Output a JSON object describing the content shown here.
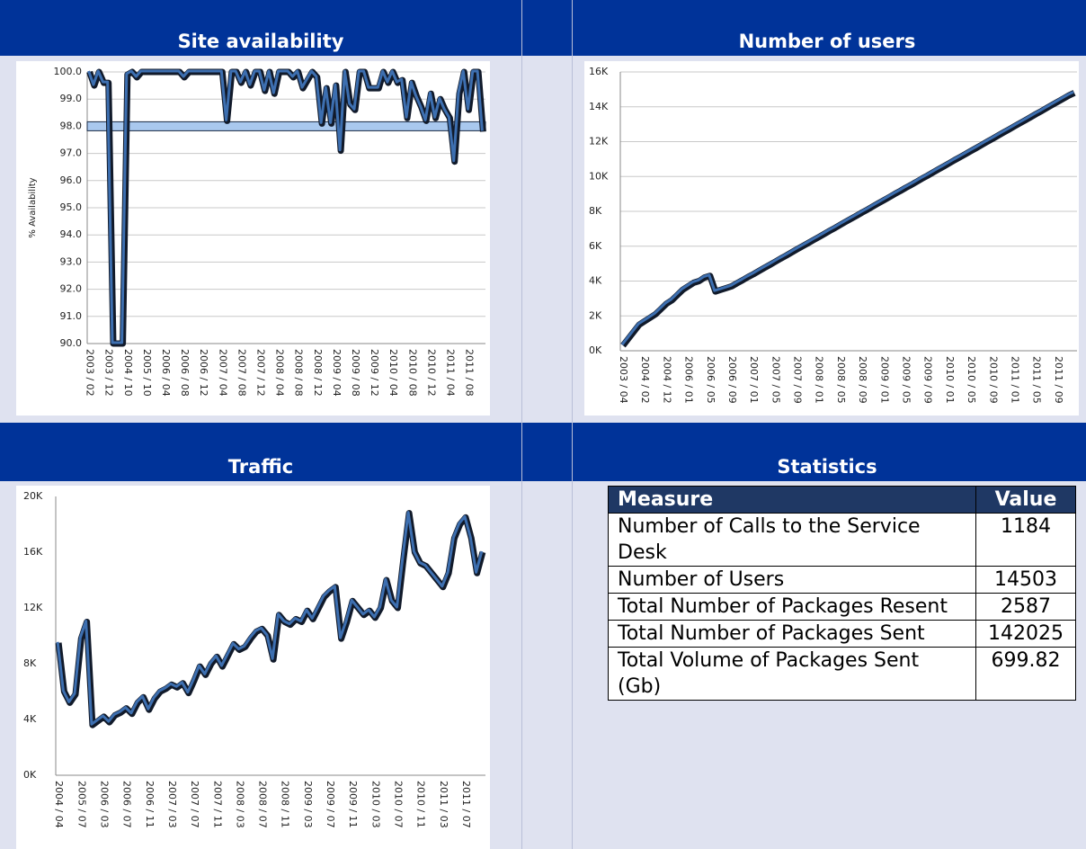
{
  "chart_data": [
    {
      "type": "line",
      "title": "Site availability",
      "ylabel": "% Availability",
      "color": "#3d6fb0",
      "target_color": "#a9c8ee",
      "grid": true,
      "categories": [
        "2003 / 02",
        null,
        null,
        null,
        "2003 / 12",
        null,
        null,
        null,
        "2004 / 10",
        null,
        null,
        null,
        "2005 / 10",
        null,
        null,
        null,
        "2006 / 04",
        null,
        null,
        null,
        "2006 / 08",
        null,
        null,
        null,
        "2006 / 12",
        null,
        null,
        null,
        "2007 / 04",
        null,
        null,
        null,
        "2007 / 08",
        null,
        null,
        null,
        "2007 / 12",
        null,
        null,
        null,
        "2008 / 04",
        null,
        null,
        null,
        "2008 / 08",
        null,
        null,
        null,
        "2008 / 12",
        null,
        null,
        null,
        "2009 / 04",
        null,
        null,
        null,
        "2009 / 08",
        null,
        null,
        null,
        "2009 / 12",
        null,
        null,
        null,
        "2010 / 04",
        null,
        null,
        null,
        "2010 / 08",
        null,
        null,
        null,
        "2010 / 12",
        null,
        null,
        null,
        "2011 / 04",
        null,
        null,
        null,
        "2011 / 08",
        null,
        null,
        null
      ],
      "values": [
        100,
        99.5,
        100,
        99.6,
        99.6,
        90,
        90,
        90,
        99.9,
        100,
        99.8,
        100,
        100,
        100,
        100,
        100,
        100,
        100,
        100,
        100,
        99.8,
        100,
        100,
        100,
        100,
        100,
        100,
        100,
        100,
        98.2,
        100,
        100,
        99.6,
        100,
        99.5,
        100,
        100,
        99.3,
        100,
        99.2,
        100,
        100,
        100,
        99.8,
        100,
        99.4,
        99.7,
        100,
        99.8,
        98.1,
        99.4,
        98.1,
        99.5,
        97.1,
        100,
        98.8,
        98.6,
        100,
        100,
        99.4,
        99.4,
        99.4,
        100,
        99.6,
        100,
        99.6,
        99.7,
        98.3,
        99.6,
        99.1,
        98.7,
        98.2,
        99.2,
        98.3,
        99,
        98.6,
        98.3,
        96.7,
        99.2,
        100,
        98.6,
        100,
        100,
        97.8
      ],
      "target": 98,
      "ylim": [
        90,
        100
      ],
      "yticks": [
        {
          "value": 90,
          "label": "90.0"
        },
        {
          "value": 91,
          "label": "91.0"
        },
        {
          "value": 92,
          "label": "92.0"
        },
        {
          "value": 93,
          "label": "93.0"
        },
        {
          "value": 94,
          "label": "94.0"
        },
        {
          "value": 95,
          "label": "95.0"
        },
        {
          "value": 96,
          "label": "96.0"
        },
        {
          "value": 97,
          "label": "97.0"
        },
        {
          "value": 98,
          "label": "98.0"
        },
        {
          "value": 99,
          "label": "99.0"
        },
        {
          "value": 100,
          "label": "100.0"
        }
      ]
    },
    {
      "type": "line",
      "title": "Number of users",
      "color": "#3d6fb0",
      "grid": true,
      "categories": [
        "2003 / 04",
        null,
        null,
        null,
        "2004 / 02",
        null,
        null,
        null,
        "2004 / 12",
        null,
        null,
        null,
        "2006 / 01",
        null,
        null,
        null,
        "2006 / 05",
        null,
        null,
        null,
        "2006 / 09",
        null,
        null,
        null,
        "2007 / 01",
        null,
        null,
        null,
        "2007 / 05",
        null,
        null,
        null,
        "2007 / 09",
        null,
        null,
        null,
        "2008 / 01",
        null,
        null,
        null,
        "2008 / 05",
        null,
        null,
        null,
        "2008 / 09",
        null,
        null,
        null,
        "2009 / 01",
        null,
        null,
        null,
        "2009 / 05",
        null,
        null,
        null,
        "2009 / 09",
        null,
        null,
        null,
        "2010 / 01",
        null,
        null,
        null,
        "2010 / 05",
        null,
        null,
        null,
        "2010 / 09",
        null,
        null,
        null,
        "2011 / 01",
        null,
        null,
        null,
        "2011 / 05",
        null,
        null,
        null,
        "2011 / 09",
        null,
        null,
        null
      ],
      "values": [
        300,
        700,
        1100,
        1500,
        1700,
        1900,
        2100,
        2400,
        2700,
        2900,
        3200,
        3500,
        3700,
        3900,
        4000,
        4200,
        4300,
        3400,
        3500,
        3600,
        3700,
        3880,
        4050,
        4230,
        4400,
        4580,
        4760,
        4930,
        5110,
        5290,
        5460,
        5640,
        5820,
        6000,
        6170,
        6350,
        6520,
        6700,
        6880,
        7050,
        7230,
        7410,
        7580,
        7760,
        7940,
        8110,
        8290,
        8470,
        8640,
        8820,
        9000,
        9170,
        9350,
        9520,
        9700,
        9880,
        10050,
        10230,
        10410,
        10580,
        10760,
        10940,
        11110,
        11290,
        11470,
        11640,
        11820,
        12000,
        12170,
        12350,
        12530,
        12700,
        12880,
        13060,
        13230,
        13410,
        13590,
        13760,
        13940,
        14120,
        14290,
        14470,
        14650,
        14800
      ],
      "ylim": [
        0,
        16000
      ],
      "yticks": [
        {
          "value": 0,
          "label": "0K"
        },
        {
          "value": 2000,
          "label": "2K"
        },
        {
          "value": 4000,
          "label": "4K"
        },
        {
          "value": 6000,
          "label": "6K"
        },
        {
          "value": 8000,
          "label": "8K"
        },
        {
          "value": 10000,
          "label": "10K"
        },
        {
          "value": 12000,
          "label": "12K"
        },
        {
          "value": 14000,
          "label": "14K"
        },
        {
          "value": 16000,
          "label": "16K"
        }
      ]
    },
    {
      "type": "line",
      "title": "Traffic",
      "color": "#3d6fb0",
      "grid": false,
      "categories": [
        "2004 / 04",
        null,
        null,
        null,
        "2005 / 07",
        null,
        null,
        null,
        "2006 / 03",
        null,
        null,
        null,
        "2006 / 07",
        null,
        null,
        null,
        "2006 / 11",
        null,
        null,
        null,
        "2007 / 03",
        null,
        null,
        null,
        "2007 / 07",
        null,
        null,
        null,
        "2007 / 11",
        null,
        null,
        null,
        "2008 / 03",
        null,
        null,
        null,
        "2008 / 07",
        null,
        null,
        null,
        "2008 / 11",
        null,
        null,
        null,
        "2009 / 03",
        null,
        null,
        null,
        "2009 / 07",
        null,
        null,
        null,
        "2009 / 11",
        null,
        null,
        null,
        "2010 / 03",
        null,
        null,
        null,
        "2010 / 07",
        null,
        null,
        null,
        "2010 / 11",
        null,
        null,
        null,
        "2011 / 03",
        null,
        null,
        null,
        "2011 / 07",
        null,
        null,
        null
      ],
      "values": [
        9500,
        6000,
        5200,
        5800,
        9800,
        11000,
        3600,
        3900,
        4200,
        3800,
        4300,
        4500,
        4800,
        4400,
        5200,
        5600,
        4700,
        5500,
        6000,
        6200,
        6500,
        6300,
        6600,
        5900,
        6800,
        7800,
        7200,
        8000,
        8500,
        7800,
        8600,
        9400,
        9000,
        9200,
        9800,
        10300,
        10500,
        10000,
        8300,
        11500,
        11000,
        10800,
        11200,
        11000,
        11800,
        11200,
        12000,
        12800,
        13200,
        13500,
        9800,
        11000,
        12500,
        12000,
        11500,
        11800,
        11300,
        12000,
        14000,
        12500,
        12000,
        15500,
        18800,
        16000,
        15200,
        15000,
        14500,
        14000,
        13500,
        14500,
        17000,
        18000,
        18500,
        17000,
        14500,
        16000
      ],
      "ylim": [
        0,
        20000
      ],
      "yticks": [
        {
          "value": 0,
          "label": "0K"
        },
        {
          "value": 4000,
          "label": "4K"
        },
        {
          "value": 8000,
          "label": "8K"
        },
        {
          "value": 12000,
          "label": "12K"
        },
        {
          "value": 16000,
          "label": "16K"
        },
        {
          "value": 20000,
          "label": "20K"
        }
      ]
    }
  ],
  "statistics": {
    "title": "Statistics",
    "columns": [
      "Measure",
      "Value"
    ],
    "rows": [
      [
        "Number of Calls to the Service Desk",
        1184
      ],
      [
        "Number of Users",
        14503
      ],
      [
        "Total Number of Packages Resent",
        2587
      ],
      [
        "Total Number of Packages Sent",
        142025
      ],
      [
        "Total Volume of Packages Sent (Gb)",
        699.82
      ]
    ]
  }
}
